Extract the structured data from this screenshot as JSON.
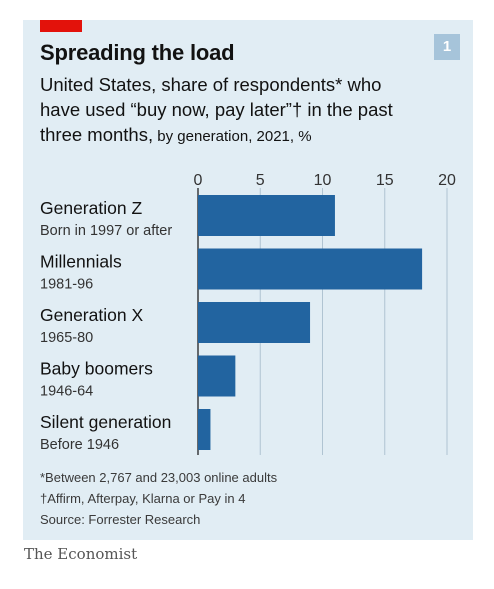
{
  "title": "Spreading the load",
  "badge": "1",
  "subtitle_main": "United States, share of respondents* who have used “buy now, pay later”† in the past three months,",
  "subtitle_small": " by generation, 2021, %",
  "footnotes": {
    "note1": "*Between 2,767 and 23,003 online adults",
    "note2": "†Affirm, Afterpay, Klarna or Pay in 4",
    "source": "Source: Forrester Research"
  },
  "brand": "The Economist",
  "colors": {
    "bar": "#2264a0",
    "accent": "#e3120b",
    "grid": "#b0c4d2",
    "background": "#e1edf4"
  },
  "chart_data": {
    "type": "bar",
    "orientation": "horizontal",
    "categories": [
      "Generation Z",
      "Millennials",
      "Generation X",
      "Baby boomers",
      "Silent generation"
    ],
    "sublabels": [
      "Born in 1997 or after",
      "1981-96",
      "1965-80",
      "1946-64",
      "Before 1946"
    ],
    "values": [
      11,
      18,
      9,
      3,
      1
    ],
    "xlim": [
      0,
      20
    ],
    "xticks": [
      "0",
      "5",
      "10",
      "15",
      "20"
    ],
    "tick_values": [
      0,
      5,
      10,
      15,
      20
    ],
    "grid": true,
    "xlabel": "",
    "ylabel": ""
  }
}
